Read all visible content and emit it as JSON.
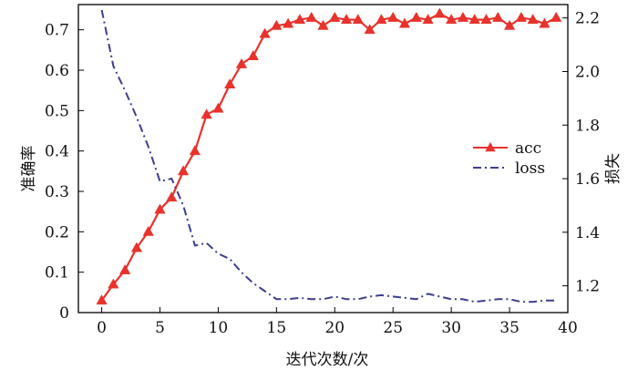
{
  "chart_data": {
    "type": "line",
    "xlabel": "迭代次数/次",
    "ylabel_left": "准确率",
    "ylabel_right": "损失",
    "xlim": [
      -2,
      40
    ],
    "ylim_left": [
      0,
      0.7625
    ],
    "ylim_right": [
      1.1,
      2.25
    ],
    "x_ticks": [
      "0",
      "5",
      "10",
      "15",
      "20",
      "25",
      "30",
      "35",
      "40"
    ],
    "y_ticks_left": [
      "0",
      "0.1",
      "0.2",
      "0.3",
      "0.4",
      "0.5",
      "0.6",
      "0.7"
    ],
    "y_ticks_right": [
      "1.2",
      "1.4",
      "1.6",
      "1.8",
      "2.0",
      "2.2"
    ],
    "grid": false,
    "legend_position": "right-middle",
    "series": [
      {
        "name": "acc",
        "axis": "left",
        "color": "#e8322b",
        "marker": "triangle",
        "line_style": "solid",
        "x": [
          0,
          1,
          2,
          3,
          4,
          5,
          6,
          7,
          8,
          9,
          10,
          11,
          12,
          13,
          14,
          15,
          16,
          17,
          18,
          19,
          20,
          21,
          22,
          23,
          24,
          25,
          26,
          27,
          28,
          29,
          30,
          31,
          32,
          33,
          34,
          35,
          36,
          37,
          38,
          39
        ],
        "values": [
          0.03,
          0.07,
          0.105,
          0.16,
          0.2,
          0.255,
          0.285,
          0.35,
          0.4,
          0.49,
          0.505,
          0.565,
          0.615,
          0.635,
          0.69,
          0.71,
          0.715,
          0.725,
          0.73,
          0.71,
          0.73,
          0.725,
          0.725,
          0.7,
          0.725,
          0.73,
          0.715,
          0.73,
          0.725,
          0.74,
          0.725,
          0.73,
          0.725,
          0.725,
          0.73,
          0.71,
          0.73,
          0.725,
          0.715,
          0.73
        ]
      },
      {
        "name": "loss",
        "axis": "right",
        "color": "#3d3d8f",
        "marker": "none",
        "line_style": "dashdot",
        "x": [
          0,
          1,
          2,
          3,
          4,
          5,
          6,
          7,
          8,
          9,
          10,
          11,
          12,
          13,
          14,
          15,
          16,
          17,
          18,
          19,
          20,
          21,
          22,
          23,
          24,
          25,
          26,
          27,
          28,
          29,
          30,
          31,
          32,
          33,
          34,
          35,
          36,
          37,
          38,
          39
        ],
        "values": [
          2.23,
          2.02,
          1.93,
          1.83,
          1.72,
          1.59,
          1.6,
          1.5,
          1.35,
          1.36,
          1.32,
          1.3,
          1.25,
          1.21,
          1.18,
          1.15,
          1.15,
          1.155,
          1.15,
          1.15,
          1.16,
          1.15,
          1.15,
          1.16,
          1.165,
          1.16,
          1.155,
          1.15,
          1.17,
          1.16,
          1.15,
          1.15,
          1.14,
          1.145,
          1.15,
          1.15,
          1.14,
          1.14,
          1.145,
          1.145
        ]
      }
    ]
  }
}
